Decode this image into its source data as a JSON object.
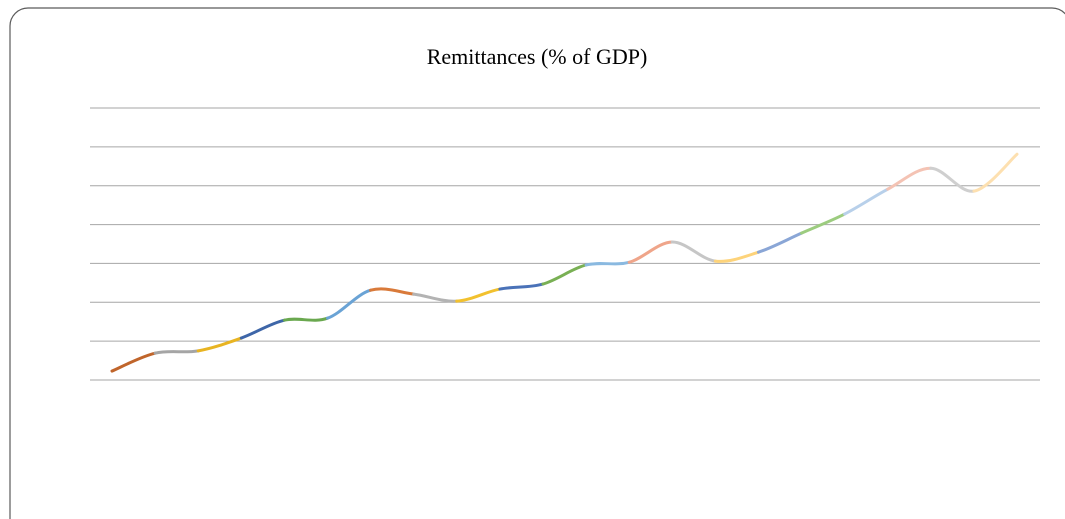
{
  "chart_data": {
    "type": "line",
    "title": "Remittances (% of GDP)",
    "categories": [
      null,
      null,
      null,
      null,
      null,
      null,
      null,
      null,
      null,
      null,
      null,
      null,
      null,
      null,
      null,
      null,
      null,
      null,
      null,
      null,
      null,
      null
    ],
    "values": [
      0.23,
      0.69,
      0.75,
      1.08,
      1.54,
      1.59,
      2.31,
      2.21,
      2.03,
      2.34,
      2.47,
      2.96,
      3.03,
      3.55,
      3.06,
      3.29,
      3.78,
      4.27,
      4.91,
      5.45,
      4.86,
      5.81
    ],
    "segment_colors": [
      "#c0652b",
      "#a5a5a5",
      "#e8b422",
      "#3e66a8",
      "#6aa84f",
      "#6aa3d5",
      "#d97a3a",
      "#b3b3b3",
      "#f2c12e",
      "#4a72b8",
      "#79b054",
      "#8ab9e0",
      "#efa58a",
      "#c6c6c6",
      "#fdd37a",
      "#8aa6d6",
      "#9ccc7f",
      "#b8d0ea",
      "#f4c3b4",
      "#cfcfcf",
      "#fde0b0"
    ],
    "ylim": [
      0,
      7
    ],
    "yticks": [
      0,
      1,
      2,
      3,
      4,
      5,
      6,
      7
    ],
    "grid": true
  }
}
